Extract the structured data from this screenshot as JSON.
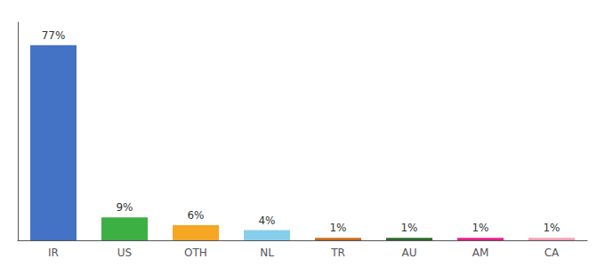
{
  "chart_data": {
    "type": "bar",
    "categories": [
      "IR",
      "US",
      "OTH",
      "NL",
      "TR",
      "AU",
      "AM",
      "CA"
    ],
    "values": [
      77,
      9,
      6,
      4,
      1,
      1,
      1,
      1
    ],
    "value_labels": [
      "77%",
      "9%",
      "6%",
      "4%",
      "1%",
      "1%",
      "1%",
      "1%"
    ],
    "colors": [
      "#4472c4",
      "#3cb043",
      "#f5a623",
      "#87ceeb",
      "#cd6b1a",
      "#2d6b2d",
      "#e91e8c",
      "#f4a0b5"
    ],
    "ylim": [
      0,
      86
    ],
    "grid": false,
    "data_labels": true,
    "tick_labels": "x"
  }
}
